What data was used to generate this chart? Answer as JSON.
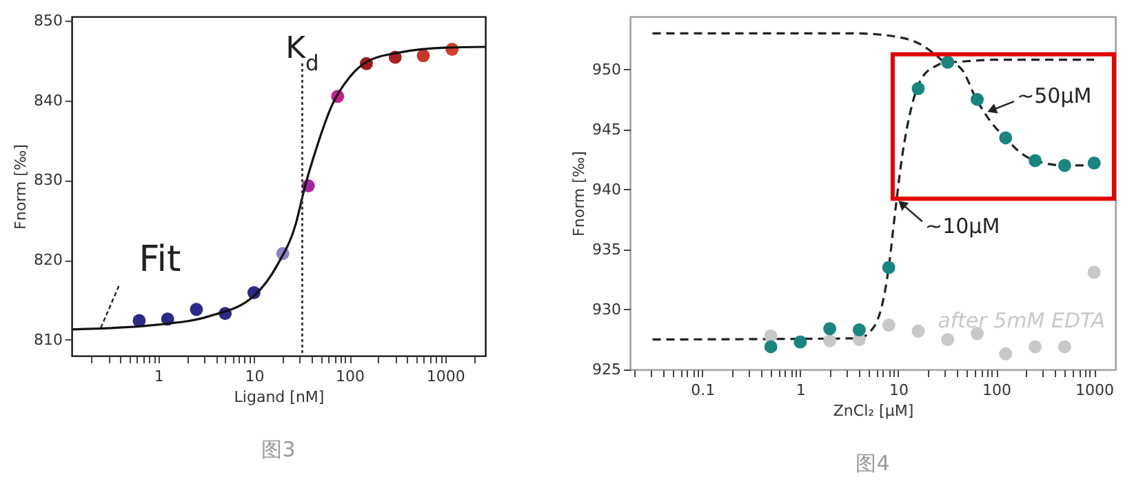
{
  "chart_data": [
    {
      "type": "scatter",
      "title": "图3",
      "xlabel": "Ligand [nM]",
      "ylabel": "Fnorm [‰]",
      "log": "x",
      "marker": "circle",
      "xlim": [
        0.124,
        2630
      ],
      "xticks": [
        {
          "value": 0.2,
          "label": null
        },
        {
          "value": 0.3,
          "label": null
        },
        {
          "value": 0.4,
          "label": null
        },
        {
          "value": 0.5,
          "label": null
        },
        {
          "value": 0.6,
          "label": null
        },
        {
          "value": 0.7,
          "label": null
        },
        {
          "value": 0.8,
          "label": null
        },
        {
          "value": 0.9,
          "label": null
        },
        1,
        {
          "value": 2,
          "label": null
        },
        {
          "value": 3,
          "label": null
        },
        {
          "value": 4,
          "label": null
        },
        {
          "value": 5,
          "label": null
        },
        {
          "value": 6,
          "label": null
        },
        {
          "value": 7,
          "label": null
        },
        {
          "value": 8,
          "label": null
        },
        {
          "value": 9,
          "label": null
        },
        10,
        {
          "value": 20,
          "label": null
        },
        {
          "value": 30,
          "label": null
        },
        {
          "value": 40,
          "label": null
        },
        {
          "value": 50,
          "label": null
        },
        {
          "value": 60,
          "label": null
        },
        {
          "value": 70,
          "label": null
        },
        {
          "value": 80,
          "label": null
        },
        {
          "value": 90,
          "label": null
        },
        100,
        {
          "value": 200,
          "label": null
        },
        {
          "value": 300,
          "label": null
        },
        {
          "value": 400,
          "label": null
        },
        {
          "value": 500,
          "label": null
        },
        {
          "value": 600,
          "label": null
        },
        {
          "value": 700,
          "label": null
        },
        {
          "value": 800,
          "label": null
        },
        {
          "value": 900,
          "label": null
        },
        1000,
        {
          "value": 2000,
          "label": null
        }
      ],
      "ylim": [
        808,
        850.5
      ],
      "yticks": [
        810,
        820,
        830,
        840,
        850
      ],
      "ref_lines": [
        {
          "axis": "x",
          "value": 32,
          "label": "K$_{d}$",
          "color": "#333333",
          "line_style": "dotted"
        }
      ],
      "annotations": [
        {
          "text": "Fit",
          "x": 0.25,
          "y": 811.5
        }
      ],
      "series": [
        {
          "x": [
            0.63,
            1.25,
            2.5,
            5,
            10,
            20,
            37,
            75,
            150,
            300,
            590,
            1180
          ],
          "values": [
            812.4,
            812.6,
            813.8,
            813.3,
            815.9,
            820.8,
            829.3,
            840.5,
            844.6,
            845.4,
            845.6,
            846.4
          ],
          "colors": [
            "#2d2a87",
            "#2d2a87",
            "#2d2a87",
            "#2d2a87",
            "#2d2a87",
            "#8b85c1",
            "#a3279e",
            "#c4208a",
            "#9c1c1c",
            "#a82222",
            "#c23a2c",
            "#d2402e"
          ]
        },
        {
          "type": "line",
          "marker": "none",
          "color": "#111111",
          "line_style": "solid",
          "x": [
            0.124,
            1,
            3.5,
            10,
            17.8,
            27.5,
            34,
            47,
            65,
            100,
            155,
            335,
            1000,
            2630
          ],
          "values": [
            811.3,
            811.9,
            813,
            815.5,
            819.5,
            824.6,
            829.1,
            834.7,
            839.3,
            842.9,
            844.9,
            846,
            846.6,
            846.7
          ]
        }
      ]
    },
    {
      "type": "scatter",
      "title": "图4",
      "xlabel": "ZnCl₂ [μM]",
      "ylabel": "Fnorm [‰]",
      "log": "x",
      "marker": "circle",
      "xlim": [
        0.0183,
        1650
      ],
      "xticks": [
        {
          "value": 0.02,
          "label": null
        },
        {
          "value": 0.03,
          "label": null
        },
        {
          "value": 0.04,
          "label": null
        },
        {
          "value": 0.05,
          "label": null
        },
        {
          "value": 0.06,
          "label": null
        },
        {
          "value": 0.07,
          "label": null
        },
        {
          "value": 0.08,
          "label": null
        },
        {
          "value": 0.09,
          "label": null
        },
        0.1,
        {
          "value": 0.2,
          "label": null
        },
        {
          "value": 0.3,
          "label": null
        },
        {
          "value": 0.4,
          "label": null
        },
        {
          "value": 0.5,
          "label": null
        },
        {
          "value": 0.6,
          "label": null
        },
        {
          "value": 0.7,
          "label": null
        },
        {
          "value": 0.8,
          "label": null
        },
        {
          "value": 0.9,
          "label": null
        },
        1,
        {
          "value": 2,
          "label": null
        },
        {
          "value": 3,
          "label": null
        },
        {
          "value": 4,
          "label": null
        },
        {
          "value": 5,
          "label": null
        },
        {
          "value": 6,
          "label": null
        },
        {
          "value": 7,
          "label": null
        },
        {
          "value": 8,
          "label": null
        },
        {
          "value": 9,
          "label": null
        },
        10,
        {
          "value": 20,
          "label": null
        },
        {
          "value": 30,
          "label": null
        },
        {
          "value": 40,
          "label": null
        },
        {
          "value": 50,
          "label": null
        },
        {
          "value": 60,
          "label": null
        },
        {
          "value": 70,
          "label": null
        },
        {
          "value": 80,
          "label": null
        },
        {
          "value": 90,
          "label": null
        },
        100,
        {
          "value": 200,
          "label": null
        },
        {
          "value": 300,
          "label": null
        },
        {
          "value": 400,
          "label": null
        },
        {
          "value": 500,
          "label": null
        },
        {
          "value": 600,
          "label": null
        },
        {
          "value": 700,
          "label": null
        },
        {
          "value": 800,
          "label": null
        },
        {
          "value": 900,
          "label": null
        },
        1000
      ],
      "ylim": [
        925,
        954.4
      ],
      "yticks": [
        925,
        930,
        935,
        940,
        945,
        950
      ],
      "annotations": [
        {
          "text": "~50μM",
          "x": 90,
          "y": 946.6
        },
        {
          "text": "~10μM",
          "x": 10.9,
          "y": 938.8
        }
      ],
      "series": [
        {
          "type": "line",
          "marker": "none",
          "color": "#222222",
          "line_style": "dashed",
          "x": [
            0.031,
            3.7,
            9.8,
            16.8,
            23.4,
            31,
            95,
            1000
          ],
          "values": [
            953,
            953,
            952.7,
            952.1,
            951.3,
            950.6,
            950.8,
            950.8
          ]
        },
        {
          "type": "line",
          "marker": "none",
          "color": "#222222",
          "line_style": "dashed",
          "x": [
            0.031,
            3.9,
            5.7,
            8,
            9.3,
            10.9,
            13.6,
            17.8,
            25.9,
            31,
            44.4,
            62.9,
            95,
            124,
            181,
            250,
            505,
            1000
          ],
          "values": [
            927.5,
            927.6,
            928.6,
            933.5,
            938.1,
            942.6,
            946.8,
            949.4,
            950.4,
            950.7,
            950,
            947.5,
            945.3,
            944.3,
            943,
            942.4,
            942,
            942
          ]
        },
        {
          "name": "after 5mM EDTA",
          "color": "#c8c8c8",
          "x": [
            0.5,
            1,
            2,
            4,
            8,
            16,
            32,
            64,
            125,
            250,
            500,
            1000
          ],
          "values": [
            927.8,
            null,
            927.4,
            927.5,
            928.7,
            928.2,
            927.5,
            928,
            926.3,
            926.9,
            926.9,
            933.1
          ]
        },
        {
          "color": "#1a8580",
          "x": [
            0.5,
            1,
            2,
            4,
            8,
            16,
            32,
            64,
            125,
            250,
            500,
            1000
          ],
          "values": [
            926.9,
            927.3,
            928.4,
            928.3,
            933.5,
            948.4,
            950.6,
            947.5,
            944.3,
            942.4,
            942,
            942.2
          ]
        }
      ]
    }
  ]
}
